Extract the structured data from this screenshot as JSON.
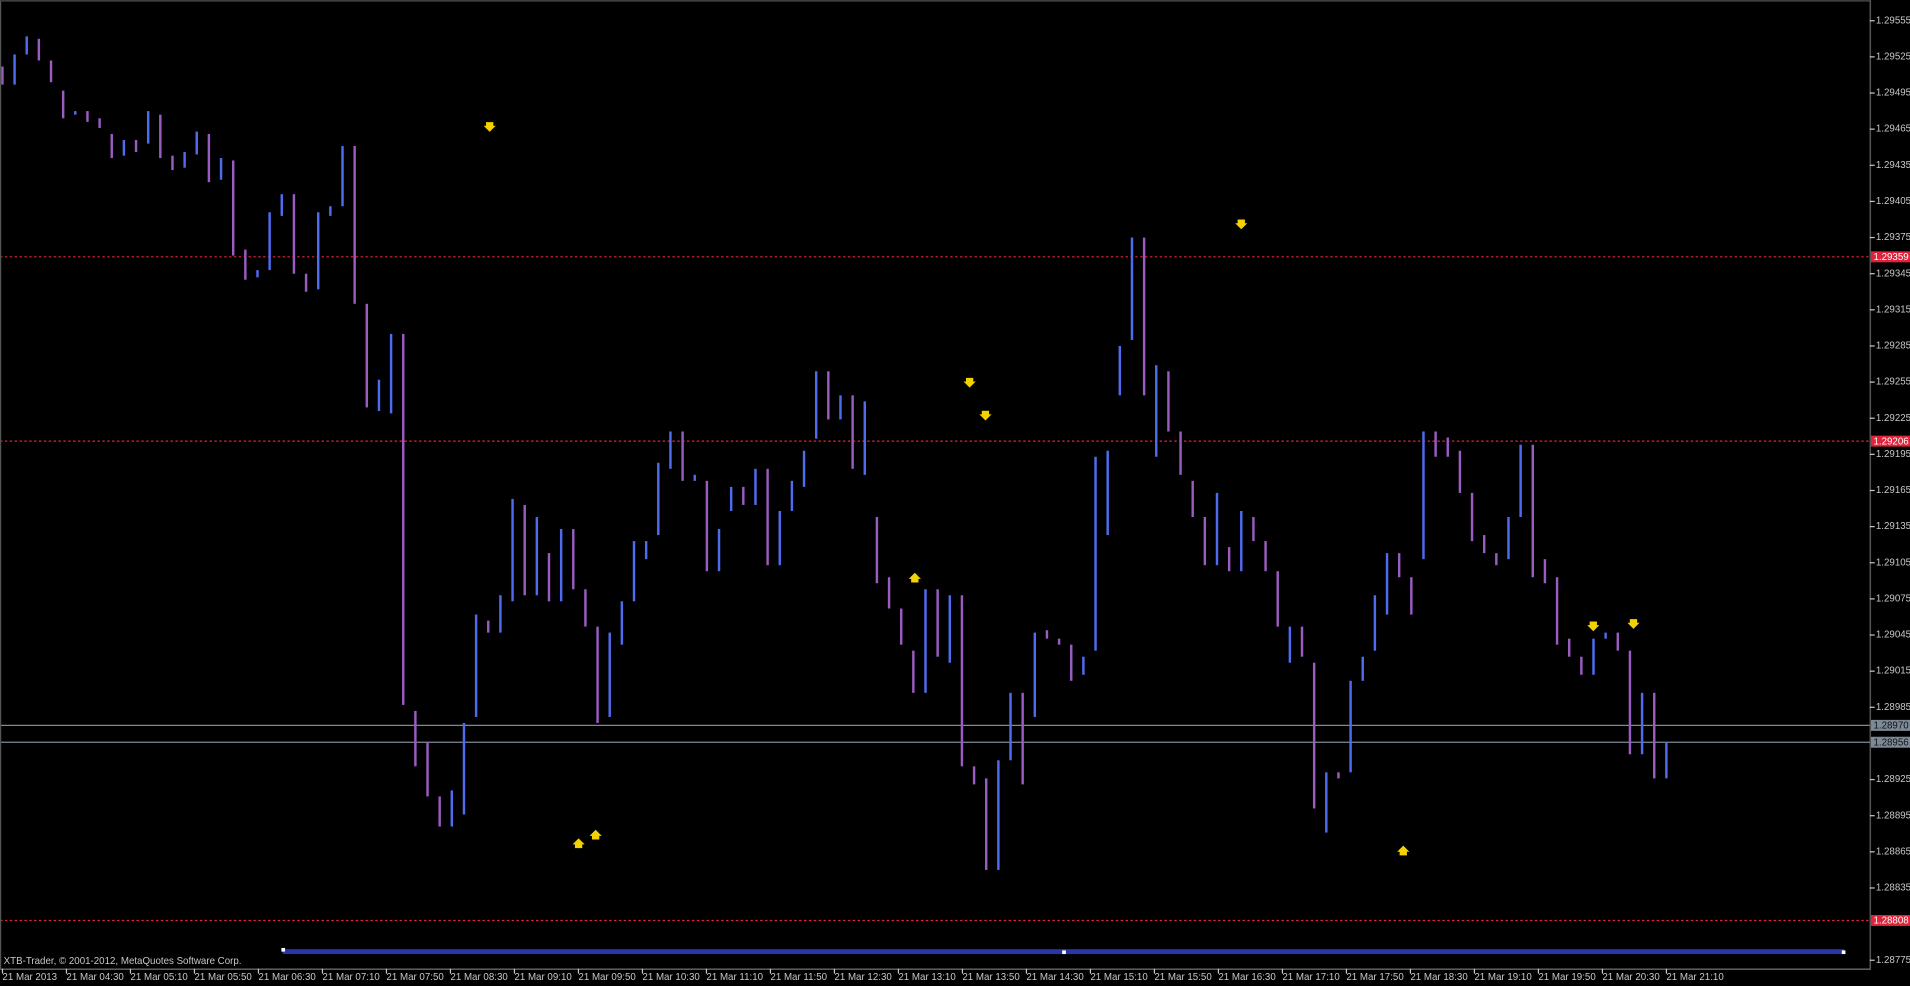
{
  "chart_data": {
    "type": "range-bar",
    "up_color": "#4f6cf0",
    "down_color": "#9a5cc0",
    "background": "#000000",
    "ylim": [
      1.28768,
      1.29572
    ],
    "yticks": [
      1.29555,
      1.29525,
      1.29495,
      1.29465,
      1.29435,
      1.29405,
      1.29375,
      1.29345,
      1.29315,
      1.29285,
      1.29255,
      1.29225,
      1.29195,
      1.29165,
      1.29135,
      1.29105,
      1.29075,
      1.29045,
      1.29015,
      1.28985,
      1.28925,
      1.28895,
      1.28865,
      1.28835,
      1.28775
    ],
    "xlabels": [
      "21 Mar 2013",
      "21 Mar 04:30",
      "21 Mar 05:10",
      "21 Mar 05:50",
      "21 Mar 06:30",
      "21 Mar 07:10",
      "21 Mar 07:50",
      "21 Mar 08:30",
      "21 Mar 09:10",
      "21 Mar 09:50",
      "21 Mar 10:30",
      "21 Mar 11:10",
      "21 Mar 11:50",
      "21 Mar 12:30",
      "21 Mar 13:10",
      "21 Mar 13:50",
      "21 Mar 14:30",
      "21 Mar 15:10",
      "21 Mar 15:50",
      "21 Mar 16:30",
      "21 Mar 17:10",
      "21 Mar 17:50",
      "21 Mar 18:30",
      "21 Mar 19:10",
      "21 Mar 19:50",
      "21 Mar 20:30",
      "21 Mar 21:10"
    ],
    "hlines": [
      {
        "value": 1.29359,
        "label": "1.29359",
        "color": "#e0233a",
        "style": "dotted"
      },
      {
        "value": 1.29206,
        "label": "1.29206",
        "color": "#e0233a",
        "style": "dotted"
      },
      {
        "value": 1.28808,
        "label": "1.28808",
        "color": "#e0233a",
        "style": "dotted"
      },
      {
        "value": 1.2897,
        "label": "1.28970",
        "color": "#7d8a96",
        "style": "solid"
      },
      {
        "value": 1.28956,
        "label": "1.28956",
        "color": "#7d8a96",
        "style": "solid"
      }
    ],
    "open": [
      1.29517,
      1.29502,
      1.29527,
      1.2954,
      1.29522,
      1.29497,
      1.29477,
      1.2948,
      1.29474,
      1.29461,
      1.29443,
      1.29456,
      1.29453,
      1.29477,
      1.29443,
      1.29433,
      1.29444,
      1.29461,
      1.29423,
      1.29439,
      1.29365,
      1.29342,
      1.29348,
      1.29393,
      1.29411,
      1.29345,
      1.29332,
      1.29393,
      1.29401,
      1.29451,
      1.2932,
      1.29231,
      1.29229,
      1.29295,
      1.28982,
      1.28956,
      1.28911,
      1.28886,
      1.28896,
      1.28977,
      1.29057,
      1.29047,
      1.29073,
      1.29153,
      1.29078,
      1.29113,
      1.29073,
      1.29133,
      1.29083,
      1.29052,
      1.28977,
      1.29037,
      1.29073,
      1.29108,
      1.29128,
      1.29183,
      1.29214,
      1.29173,
      1.29173,
      1.29098,
      1.29148,
      1.29168,
      1.29153,
      1.29183,
      1.29103,
      1.29148,
      1.29168,
      1.29208,
      1.29264,
      1.29224,
      1.29244,
      1.29178,
      1.29143,
      1.29093,
      1.29067,
      1.29032,
      1.28997,
      1.29083,
      1.29022,
      1.29078,
      1.28936,
      1.28926,
      1.2885,
      1.28941,
      1.28997,
      1.28977,
      1.29049,
      1.29042,
      1.29037,
      1.29012,
      1.29032,
      1.29128,
      1.29244,
      1.2929,
      1.29375,
      1.29193,
      1.29264,
      1.29214,
      1.29173,
      1.29143,
      1.29103,
      1.29118,
      1.29098,
      1.29143,
      1.29123,
      1.29098,
      1.29022,
      1.29052,
      1.29022,
      1.28881,
      1.28931,
      1.28931,
      1.29007,
      1.29032,
      1.29062,
      1.29113,
      1.29093,
      1.29108,
      1.29214,
      1.29209,
      1.29198,
      1.29163,
      1.29128,
      1.29113,
      1.29108,
      1.29143,
      1.29203,
      1.29108,
      1.29093,
      1.29042,
      1.29027,
      1.29012,
      1.29042,
      1.29047,
      1.29032,
      1.28946,
      1.28997,
      1.28926
    ],
    "close": [
      1.29502,
      1.29527,
      1.29542,
      1.29522,
      1.29504,
      1.29474,
      1.2948,
      1.29471,
      1.29466,
      1.29441,
      1.29456,
      1.29446,
      1.2948,
      1.29441,
      1.29431,
      1.29446,
      1.29463,
      1.29421,
      1.29441,
      1.2936,
      1.2934,
      1.29348,
      1.29396,
      1.29411,
      1.29345,
      1.2933,
      1.29396,
      1.29401,
      1.29451,
      1.2932,
      1.29234,
      1.29257,
      1.29295,
      1.28987,
      1.28936,
      1.28911,
      1.28886,
      1.28916,
      1.28972,
      1.29062,
      1.29047,
      1.29078,
      1.29158,
      1.29078,
      1.29143,
      1.29073,
      1.29133,
      1.29083,
      1.29052,
      1.28972,
      1.29047,
      1.29073,
      1.29123,
      1.29123,
      1.29188,
      1.29214,
      1.29173,
      1.29178,
      1.29098,
      1.29133,
      1.29168,
      1.29153,
      1.29183,
      1.29103,
      1.29148,
      1.29173,
      1.29198,
      1.29264,
      1.29224,
      1.29244,
      1.29183,
      1.29239,
      1.29088,
      1.29067,
      1.29037,
      1.28997,
      1.29083,
      1.29027,
      1.29078,
      1.28936,
      1.28921,
      1.2885,
      1.28941,
      1.28997,
      1.28921,
      1.29047,
      1.29042,
      1.29037,
      1.29007,
      1.29027,
      1.29193,
      1.29198,
      1.29285,
      1.29375,
      1.29244,
      1.29269,
      1.29214,
      1.29178,
      1.29143,
      1.29103,
      1.29163,
      1.29098,
      1.29148,
      1.29123,
      1.29098,
      1.29052,
      1.29052,
      1.29027,
      1.28901,
      1.28931,
      1.28926,
      1.29007,
      1.29027,
      1.29078,
      1.29113,
      1.29093,
      1.29062,
      1.29214,
      1.29193,
      1.29193,
      1.29163,
      1.29123,
      1.29113,
      1.29103,
      1.29143,
      1.29203,
      1.29093,
      1.29088,
      1.29037,
      1.29027,
      1.29012,
      1.29042,
      1.29047,
      1.29032,
      1.28946,
      1.28997,
      1.28926,
      1.28956
    ]
  },
  "footer": "XTB-Trader, © 2001-2012, MetaQuotes Software Corp."
}
